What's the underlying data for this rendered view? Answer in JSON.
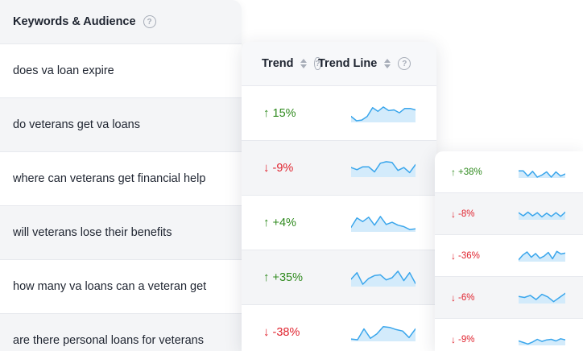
{
  "keywords_panel": {
    "title": "Keywords & Audience",
    "help_icon": "question-circle-icon",
    "rows": [
      "does va loan expire",
      "do veterans get va loans",
      "where can veterans get financial help",
      "will veterans lose their benefits",
      "how many va loans can a veteran get",
      "are there personal loans for veterans"
    ]
  },
  "trend_panel": {
    "trend_header": "Trend",
    "trend_line_header": "Trend Line",
    "sort_icon": "sort-arrows-icon",
    "rows": [
      {
        "arrow": "↑",
        "direction": "up",
        "value": "15%",
        "spark": [
          0.3,
          0.0,
          0.05,
          0.3,
          0.9,
          0.65,
          0.95,
          0.7,
          0.75,
          0.55,
          0.85,
          0.85,
          0.75
        ]
      },
      {
        "arrow": "↓",
        "direction": "down",
        "value": "-9%",
        "spark": [
          0.55,
          0.4,
          0.6,
          0.6,
          0.25,
          0.85,
          0.95,
          0.9,
          0.35,
          0.55,
          0.2,
          0.75
        ]
      },
      {
        "arrow": "↑",
        "direction": "up",
        "value": "+4%",
        "spark": [
          0.2,
          0.85,
          0.6,
          0.9,
          0.35,
          0.95,
          0.4,
          0.55,
          0.35,
          0.25,
          0.05,
          0.1
        ]
      },
      {
        "arrow": "↑",
        "direction": "up",
        "value": "+35%",
        "spark": [
          0.4,
          0.85,
          0.05,
          0.45,
          0.65,
          0.7,
          0.35,
          0.5,
          0.95,
          0.3,
          0.85,
          0.1
        ]
      },
      {
        "arrow": "↓",
        "direction": "down",
        "value": "-38%",
        "spark": [
          0.05,
          0.0,
          0.75,
          0.1,
          0.4,
          0.9,
          0.85,
          0.7,
          0.6,
          0.15,
          0.75
        ]
      }
    ]
  },
  "small_panel": {
    "rows": [
      {
        "arrow": "↑",
        "direction": "up",
        "value": "+38%",
        "spark": [
          0.6,
          0.6,
          0.1,
          0.55,
          0.0,
          0.2,
          0.5,
          0.0,
          0.5,
          0.1,
          0.3
        ]
      },
      {
        "arrow": "↓",
        "direction": "down",
        "value": "-8%",
        "spark": [
          0.6,
          0.3,
          0.65,
          0.3,
          0.6,
          0.2,
          0.55,
          0.25,
          0.6,
          0.25,
          0.65
        ]
      },
      {
        "arrow": "↓",
        "direction": "down",
        "value": "-36%",
        "spark": [
          0.1,
          0.55,
          0.85,
          0.35,
          0.7,
          0.25,
          0.45,
          0.8,
          0.2,
          0.9,
          0.65,
          0.75
        ]
      },
      {
        "arrow": "↓",
        "direction": "down",
        "value": "-6%",
        "spark": [
          0.6,
          0.5,
          0.7,
          0.3,
          0.8,
          0.55,
          0.1,
          0.5,
          0.9
        ]
      },
      {
        "arrow": "↓",
        "direction": "down",
        "value": "-9%",
        "spark": [
          0.35,
          0.2,
          0.05,
          0.25,
          0.5,
          0.3,
          0.45,
          0.5,
          0.35,
          0.55,
          0.45
        ]
      }
    ]
  },
  "colors": {
    "up": "#2f8a1e",
    "down": "#e0242f",
    "sparkline": "#3aa6ec",
    "sparkline_fill": "#d3ebfb"
  }
}
